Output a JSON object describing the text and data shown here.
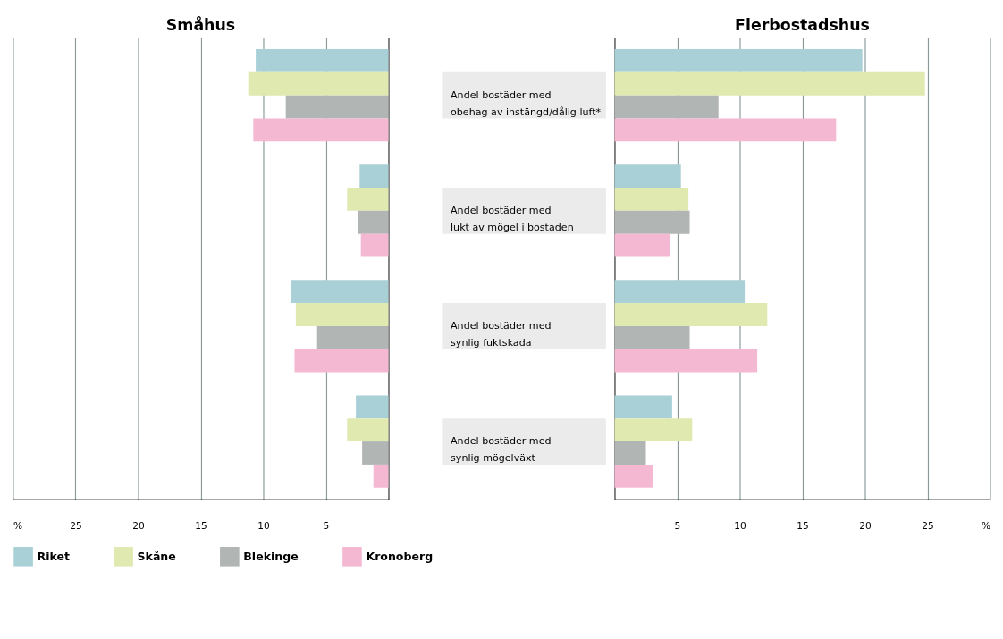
{
  "chart_data": [
    {
      "type": "bar",
      "orientation": "horizontal",
      "title": "Småhus",
      "categories": [
        "Andel bostäder med\nobehag av instängd/dålig luft*",
        "Andel bostäder med\nlukt av mögel i bostaden",
        "Andel bostäder med\nsynlig fuktskada",
        "Andel bostäder med\nsynlig mögelväxt"
      ],
      "series": [
        {
          "name": "Riket",
          "color": "#a8d0d6",
          "values": [
            10.6,
            2.3,
            7.8,
            2.6
          ]
        },
        {
          "name": "Skåne",
          "color": "#dfe9b0",
          "values": [
            11.2,
            3.3,
            7.4,
            3.3
          ]
        },
        {
          "name": "Blekinge",
          "color": "#b1b5b3",
          "values": [
            8.2,
            2.4,
            5.7,
            2.1
          ]
        },
        {
          "name": "Kronoberg",
          "color": "#f5b8d2",
          "values": [
            10.8,
            2.2,
            7.5,
            1.2
          ]
        }
      ],
      "xlim": [
        30,
        0
      ],
      "xticks": [
        {
          "value": 30,
          "label": "%"
        },
        25,
        20,
        15,
        10,
        5
      ],
      "grid": "x",
      "legend": "bottom"
    },
    {
      "type": "bar",
      "orientation": "horizontal",
      "title": "Flerbostadshus",
      "series": [
        {
          "name": "Riket",
          "color": "#a8d0d6",
          "values": [
            19.8,
            5.3,
            10.4,
            4.6
          ]
        },
        {
          "name": "Skåne",
          "color": "#dfe9b0",
          "values": [
            24.8,
            5.9,
            12.2,
            6.2
          ]
        },
        {
          "name": "Blekinge",
          "color": "#b1b5b3",
          "values": [
            8.3,
            6.0,
            6.0,
            2.5
          ]
        },
        {
          "name": "Kronoberg",
          "color": "#f5b8d2",
          "values": [
            17.7,
            4.4,
            11.4,
            3.1
          ]
        }
      ],
      "xlim": [
        0,
        30
      ],
      "xticks": [
        5,
        10,
        15,
        20,
        25,
        {
          "value": 30,
          "label": "%"
        }
      ],
      "grid": "x",
      "tick_labels": "x"
    }
  ]
}
